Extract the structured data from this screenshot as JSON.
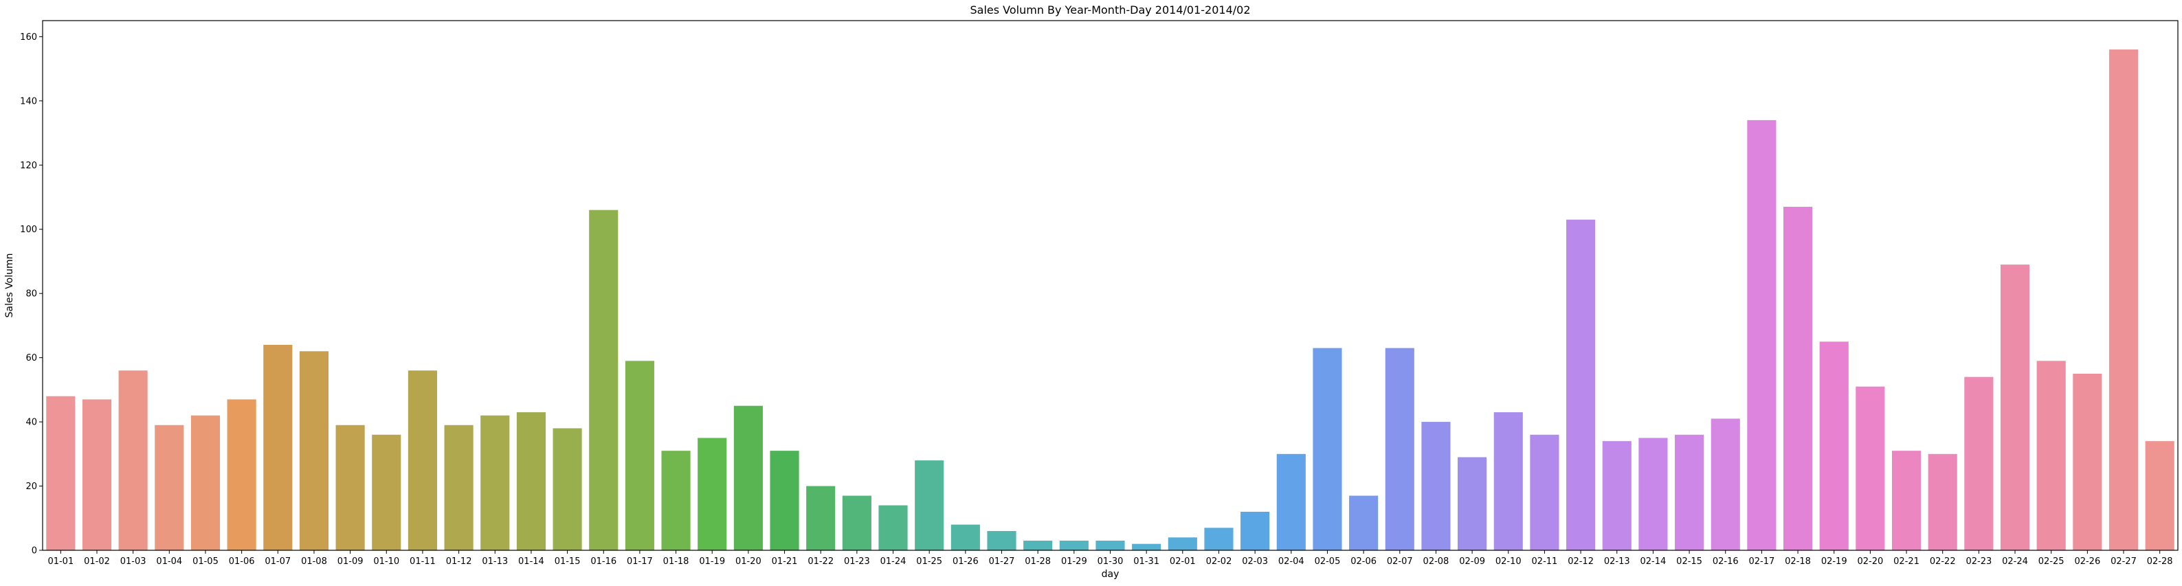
{
  "chart_data": {
    "type": "bar",
    "title": "Sales Volumn By Year-Month-Day 2014/01-2014/02",
    "xlabel": "day",
    "ylabel": "Sales Volumn",
    "ylim": [
      0,
      165
    ],
    "yticks": [
      0,
      20,
      40,
      60,
      80,
      100,
      120,
      140,
      160
    ],
    "grid": false,
    "categories": [
      "01-01",
      "01-02",
      "01-03",
      "01-04",
      "01-05",
      "01-06",
      "01-07",
      "01-08",
      "01-09",
      "01-10",
      "01-11",
      "01-12",
      "01-13",
      "01-14",
      "01-15",
      "01-16",
      "01-17",
      "01-18",
      "01-19",
      "01-20",
      "01-21",
      "01-22",
      "01-23",
      "01-24",
      "01-25",
      "01-26",
      "01-27",
      "01-28",
      "01-29",
      "01-30",
      "01-31",
      "02-01",
      "02-02",
      "02-03",
      "02-04",
      "02-05",
      "02-06",
      "02-07",
      "02-08",
      "02-09",
      "02-10",
      "02-11",
      "02-12",
      "02-13",
      "02-14",
      "02-15",
      "02-16",
      "02-17",
      "02-18",
      "02-19",
      "02-20",
      "02-21",
      "02-22",
      "02-23",
      "02-24",
      "02-25",
      "02-26",
      "02-27",
      "02-28"
    ],
    "values": [
      48,
      47,
      56,
      39,
      42,
      47,
      64,
      62,
      39,
      36,
      56,
      39,
      42,
      43,
      38,
      106,
      59,
      31,
      35,
      45,
      31,
      20,
      17,
      14,
      28,
      8,
      6,
      3,
      3,
      3,
      2,
      4,
      7,
      12,
      30,
      63,
      17,
      63,
      40,
      29,
      43,
      36,
      103,
      34,
      35,
      36,
      41,
      134,
      107,
      65,
      51,
      31,
      30,
      54,
      89,
      59,
      55,
      156,
      34
    ],
    "colors": [
      "#ee9598",
      "#ed9592",
      "#ec968a",
      "#ea9880",
      "#e99a74",
      "#e79b5c",
      "#d19c4f",
      "#c89f4e",
      "#c1a24e",
      "#bba44e",
      "#b5a64e",
      "#afa84e",
      "#a8aa4e",
      "#a1ac4d",
      "#99ae4d",
      "#8fb14d",
      "#82b44d",
      "#72b74d",
      "#5fba4e",
      "#58b552",
      "#4db456",
      "#53b568",
      "#52b67b",
      "#52b68b",
      "#52b699",
      "#52b6a4",
      "#52b6ae",
      "#52b6b8",
      "#52b5c1",
      "#53b3ca",
      "#54b0d3",
      "#56add9",
      "#58aadf",
      "#5aa6e4",
      "#61a2e8",
      "#6e9deb",
      "#7b98ec",
      "#8794ed",
      "#9391ed",
      "#9e8fed",
      "#a88ded",
      "#b18bec",
      "#b98aeb",
      "#c089ea",
      "#c888e9",
      "#cf87e7",
      "#d686e3",
      "#dd84de",
      "#e383d8",
      "#e882d0",
      "#eb84c8",
      "#ec86c0",
      "#ec88b8",
      "#ed8ab1",
      "#ed8ca9",
      "#ed8ea2",
      "#ed909c",
      "#ed9297",
      "#ee9491"
    ]
  }
}
